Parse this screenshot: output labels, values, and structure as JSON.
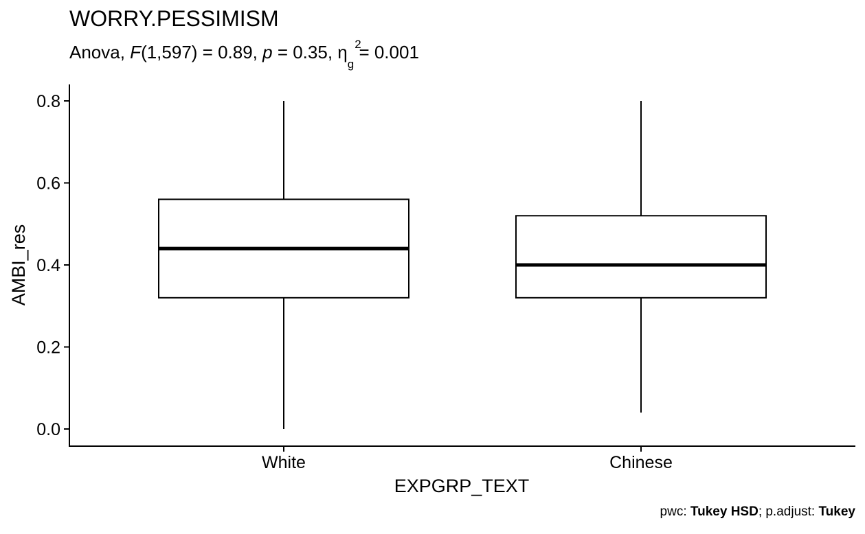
{
  "chart_data": {
    "type": "box",
    "title": "WORRY.PESSIMISM",
    "subtitle": {
      "prefix": "Anova, ",
      "stat_name": "F",
      "stat_df": "(1,597) = 0.89, ",
      "p_name": "p",
      "p_value": " = 0.35, ",
      "eta_symbol": "η",
      "eta_sup": "2",
      "eta_sub": "g",
      "eta_value": " = 0.001"
    },
    "xlabel": "EXPGRP_TEXT",
    "ylabel": "AMBI_res",
    "ylim": [
      0,
      0.8
    ],
    "y_ticks": [
      0.0,
      0.2,
      0.4,
      0.6,
      0.8
    ],
    "y_tick_labels": [
      "0.0",
      "0.2",
      "0.4",
      "0.6",
      "0.8"
    ],
    "categories": [
      "White",
      "Chinese"
    ],
    "boxes": [
      {
        "category": "White",
        "min": 0.0,
        "q1": 0.32,
        "median": 0.44,
        "q3": 0.56,
        "max": 0.8
      },
      {
        "category": "Chinese",
        "min": 0.04,
        "q1": 0.32,
        "median": 0.4,
        "q3": 0.52,
        "max": 0.8
      }
    ],
    "grid": false
  },
  "caption": {
    "pwc_label": "pwc: ",
    "pwc_value": "Tukey HSD",
    "sep": "; p.adjust: ",
    "adjust_value": "Tukey"
  }
}
